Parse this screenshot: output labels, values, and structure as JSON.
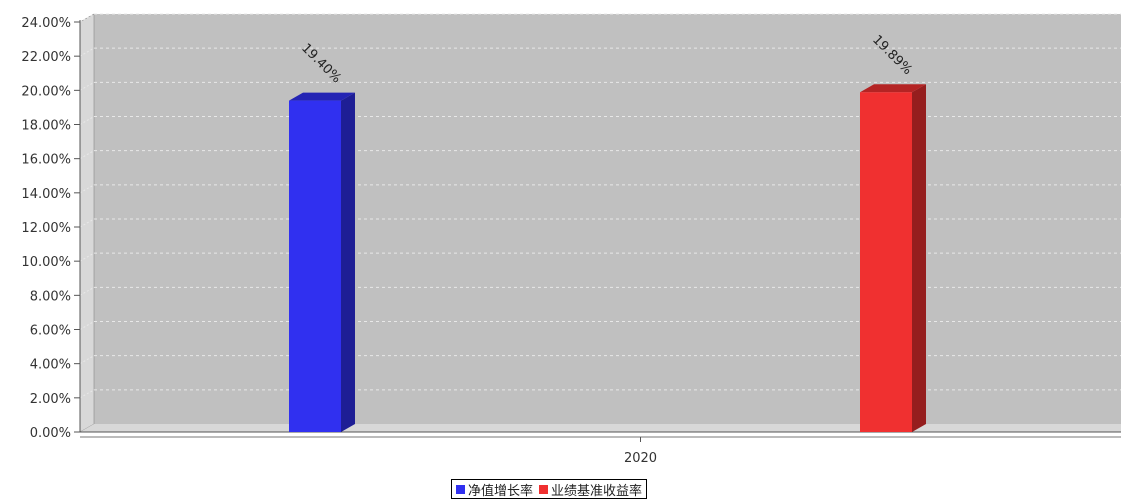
{
  "chart_data": {
    "type": "bar",
    "categories": [
      "2020"
    ],
    "series": [
      {
        "name": "净值增长率",
        "values": [
          19.4
        ],
        "label": "19.40%",
        "color": "#3030f0"
      },
      {
        "name": "业绩基准收益率",
        "values": [
          19.89
        ],
        "label": "19.89%",
        "color": "#f03030"
      }
    ],
    "ylim": [
      0,
      24
    ],
    "yticks": [
      0,
      2,
      4,
      6,
      8,
      10,
      12,
      14,
      16,
      18,
      20,
      22,
      24
    ],
    "ytick_labels": [
      "0.00%",
      "2.00%",
      "4.00%",
      "6.00%",
      "8.00%",
      "10.00%",
      "12.00%",
      "14.00%",
      "16.00%",
      "18.00%",
      "20.00%",
      "22.00%",
      "24.00%"
    ],
    "grid": true,
    "legend_position": "bottom-center",
    "title": "",
    "xlabel": "",
    "ylabel": "",
    "colors": {
      "plot_bg": "#c0c0c0",
      "wall": "#d8d8d8",
      "grid": "#e8e8e8"
    }
  }
}
